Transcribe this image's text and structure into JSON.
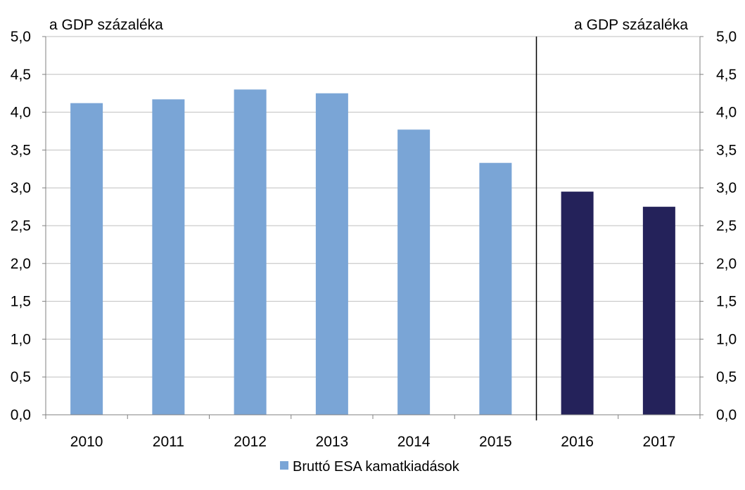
{
  "chart_data": {
    "type": "bar",
    "categories": [
      "2010",
      "2011",
      "2012",
      "2013",
      "2014",
      "2015",
      "2016",
      "2017"
    ],
    "series": [
      {
        "name": "Bruttó ESA kamatkiadások",
        "values": [
          4.12,
          4.17,
          4.3,
          4.25,
          3.77,
          3.33,
          2.95,
          2.75
        ]
      }
    ],
    "forecast_categories": [
      "2016",
      "2017"
    ],
    "colors": {
      "actual": "#7aa5d6",
      "forecast": "#24225a",
      "grid": "#bfbfbf",
      "axis": "#808080",
      "divider": "#000000"
    },
    "ylim": [
      0,
      5
    ],
    "ytick_step": 0.5,
    "yticks": [
      "0,0",
      "0,5",
      "1,0",
      "1,5",
      "2,0",
      "2,5",
      "3,0",
      "3,5",
      "4,0",
      "4,5",
      "5,0"
    ],
    "left_axis_unit": "a GDP százaléka",
    "right_axis_unit": "a GDP százaléka",
    "grid": true,
    "legend_position": "bottom",
    "divider_after": "2015"
  }
}
